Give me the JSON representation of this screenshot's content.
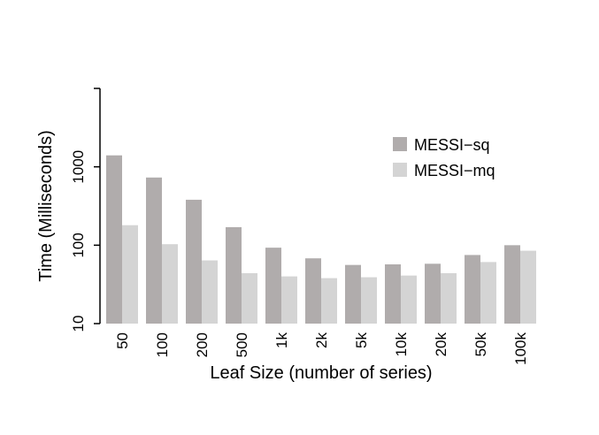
{
  "chart_data": {
    "type": "bar",
    "title": "",
    "xlabel": "Leaf Size (number of series)",
    "ylabel": "Time (Milliseconds)",
    "yscale": "log",
    "ylim": [
      10,
      10000
    ],
    "yticks": [
      10,
      100,
      1000
    ],
    "ytick_labels": [
      "10",
      "100",
      "1000"
    ],
    "categories": [
      "50",
      "100",
      "200",
      "500",
      "1k",
      "2k",
      "5k",
      "10k",
      "20k",
      "50k",
      "100k"
    ],
    "series": [
      {
        "name": "MESSI−sq",
        "color": "#b0acac",
        "values": [
          1400,
          730,
          380,
          170,
          93,
          68,
          56,
          57,
          58,
          75,
          100
        ]
      },
      {
        "name": "MESSI−mq",
        "color": "#d4d4d4",
        "values": [
          180,
          103,
          64,
          44,
          40,
          38,
          39,
          41,
          44,
          61,
          85
        ]
      }
    ],
    "legend_position": "top-right",
    "grid": false
  }
}
